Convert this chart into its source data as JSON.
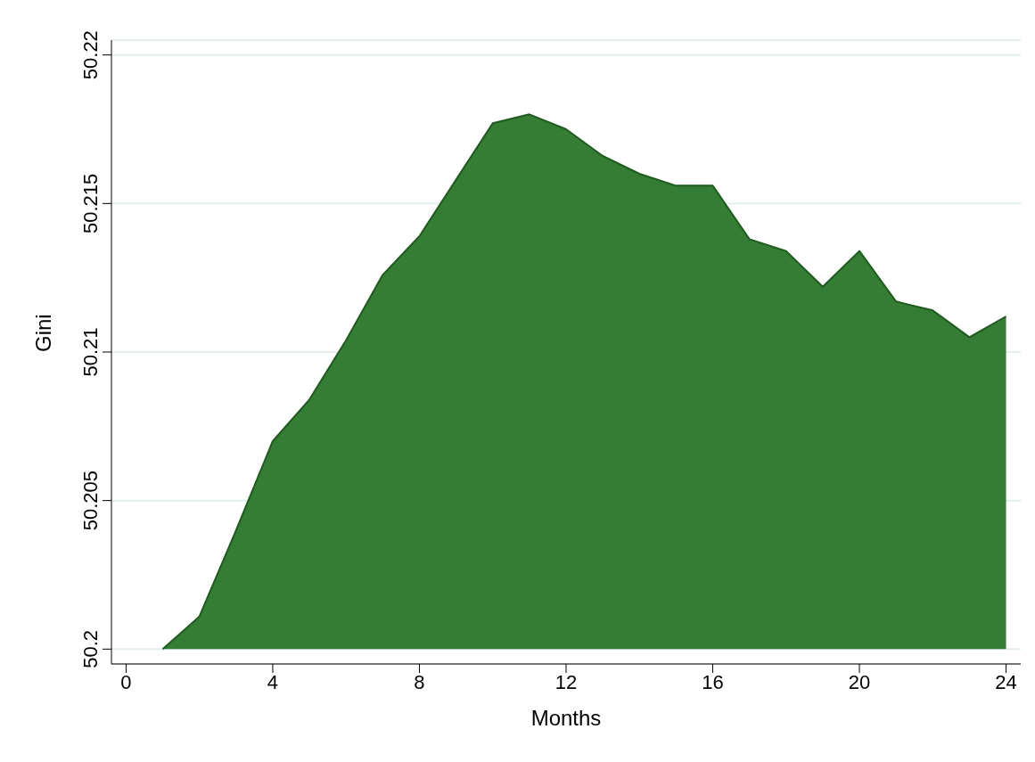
{
  "chart_data": {
    "type": "area",
    "xlabel": "Months",
    "ylabel": "Gini",
    "x": [
      1,
      2,
      3,
      4,
      5,
      6,
      7,
      8,
      9,
      10,
      11,
      12,
      13,
      14,
      15,
      16,
      17,
      18,
      19,
      20,
      21,
      22,
      23,
      24
    ],
    "series": [
      {
        "color": "#357d34",
        "values": [
          50.2,
          50.2011,
          50.204,
          50.207,
          50.2084,
          50.2104,
          50.2126,
          50.2139,
          50.2158,
          50.2177,
          50.218,
          50.2175,
          50.2166,
          50.216,
          50.2156,
          50.2156,
          50.2138,
          50.2134,
          50.2122,
          50.2134,
          50.2117,
          50.2114,
          50.2105,
          50.2112
        ]
      }
    ],
    "xlim": [
      -0.4,
      24.4
    ],
    "xticks": [
      0,
      4,
      8,
      12,
      16,
      20,
      24
    ],
    "ylim": [
      50.1995,
      50.2205
    ],
    "yticks": [
      50.2,
      50.205,
      50.21,
      50.215,
      50.22
    ],
    "grid": "y",
    "legend": false
  }
}
